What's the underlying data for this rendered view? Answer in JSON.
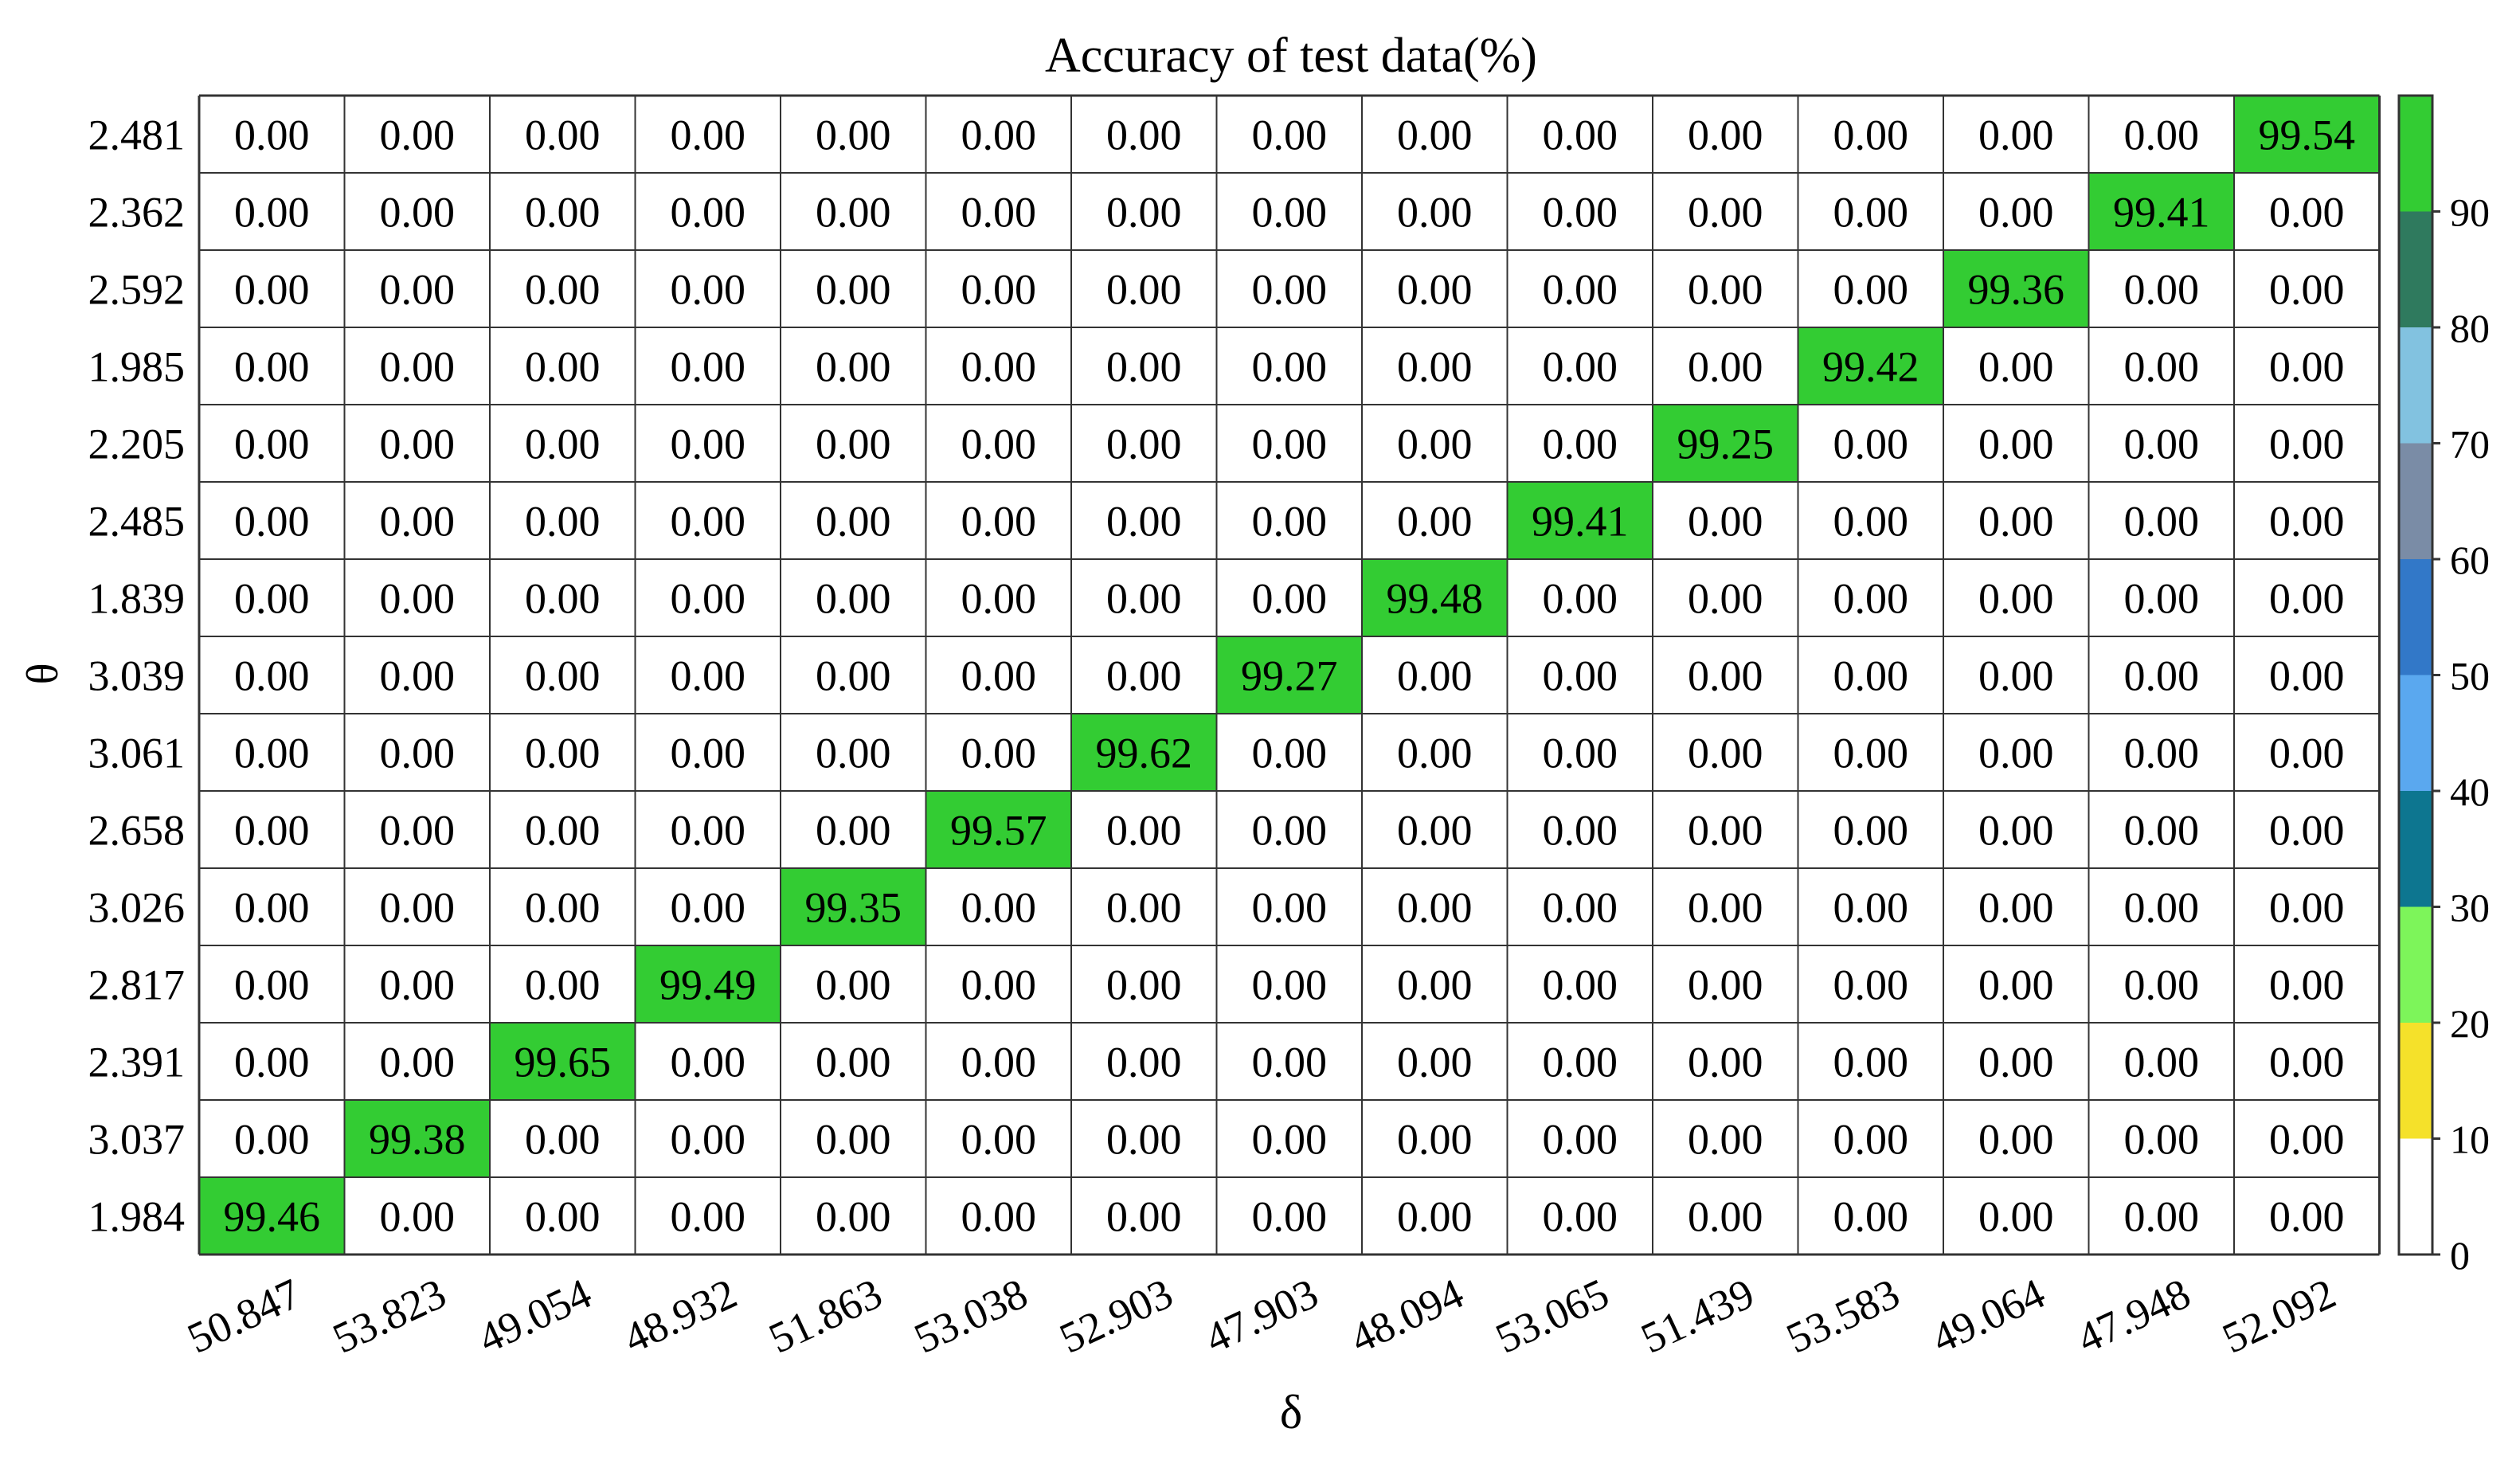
{
  "chart_data": {
    "type": "heatmap",
    "title": "Accuracy of test data(%)",
    "xlabel": "δ",
    "ylabel": "θ",
    "x_categories": [
      "50.847",
      "53.823",
      "49.054",
      "48.932",
      "51.863",
      "53.038",
      "52.903",
      "47.903",
      "48.094",
      "53.065",
      "51.439",
      "53.583",
      "49.064",
      "47.948",
      "52.092"
    ],
    "y_categories": [
      "2.481",
      "2.362",
      "2.592",
      "1.985",
      "2.205",
      "2.485",
      "1.839",
      "3.039",
      "3.061",
      "2.658",
      "3.026",
      "2.817",
      "2.391",
      "3.037",
      "1.984"
    ],
    "values": [
      [
        "0.00",
        "0.00",
        "0.00",
        "0.00",
        "0.00",
        "0.00",
        "0.00",
        "0.00",
        "0.00",
        "0.00",
        "0.00",
        "0.00",
        "0.00",
        "0.00",
        "99.54"
      ],
      [
        "0.00",
        "0.00",
        "0.00",
        "0.00",
        "0.00",
        "0.00",
        "0.00",
        "0.00",
        "0.00",
        "0.00",
        "0.00",
        "0.00",
        "0.00",
        "99.41",
        "0.00"
      ],
      [
        "0.00",
        "0.00",
        "0.00",
        "0.00",
        "0.00",
        "0.00",
        "0.00",
        "0.00",
        "0.00",
        "0.00",
        "0.00",
        "0.00",
        "99.36",
        "0.00",
        "0.00"
      ],
      [
        "0.00",
        "0.00",
        "0.00",
        "0.00",
        "0.00",
        "0.00",
        "0.00",
        "0.00",
        "0.00",
        "0.00",
        "0.00",
        "99.42",
        "0.00",
        "0.00",
        "0.00"
      ],
      [
        "0.00",
        "0.00",
        "0.00",
        "0.00",
        "0.00",
        "0.00",
        "0.00",
        "0.00",
        "0.00",
        "0.00",
        "99.25",
        "0.00",
        "0.00",
        "0.00",
        "0.00"
      ],
      [
        "0.00",
        "0.00",
        "0.00",
        "0.00",
        "0.00",
        "0.00",
        "0.00",
        "0.00",
        "0.00",
        "99.41",
        "0.00",
        "0.00",
        "0.00",
        "0.00",
        "0.00"
      ],
      [
        "0.00",
        "0.00",
        "0.00",
        "0.00",
        "0.00",
        "0.00",
        "0.00",
        "0.00",
        "99.48",
        "0.00",
        "0.00",
        "0.00",
        "0.00",
        "0.00",
        "0.00"
      ],
      [
        "0.00",
        "0.00",
        "0.00",
        "0.00",
        "0.00",
        "0.00",
        "0.00",
        "99.27",
        "0.00",
        "0.00",
        "0.00",
        "0.00",
        "0.00",
        "0.00",
        "0.00"
      ],
      [
        "0.00",
        "0.00",
        "0.00",
        "0.00",
        "0.00",
        "0.00",
        "99.62",
        "0.00",
        "0.00",
        "0.00",
        "0.00",
        "0.00",
        "0.00",
        "0.00",
        "0.00"
      ],
      [
        "0.00",
        "0.00",
        "0.00",
        "0.00",
        "0.00",
        "99.57",
        "0.00",
        "0.00",
        "0.00",
        "0.00",
        "0.00",
        "0.00",
        "0.00",
        "0.00",
        "0.00"
      ],
      [
        "0.00",
        "0.00",
        "0.00",
        "0.00",
        "99.35",
        "0.00",
        "0.00",
        "0.00",
        "0.00",
        "0.00",
        "0.00",
        "0.00",
        "0.00",
        "0.00",
        "0.00"
      ],
      [
        "0.00",
        "0.00",
        "0.00",
        "99.49",
        "0.00",
        "0.00",
        "0.00",
        "0.00",
        "0.00",
        "0.00",
        "0.00",
        "0.00",
        "0.00",
        "0.00",
        "0.00"
      ],
      [
        "0.00",
        "0.00",
        "99.65",
        "0.00",
        "0.00",
        "0.00",
        "0.00",
        "0.00",
        "0.00",
        "0.00",
        "0.00",
        "0.00",
        "0.00",
        "0.00",
        "0.00"
      ],
      [
        "0.00",
        "99.38",
        "0.00",
        "0.00",
        "0.00",
        "0.00",
        "0.00",
        "0.00",
        "0.00",
        "0.00",
        "0.00",
        "0.00",
        "0.00",
        "0.00",
        "0.00"
      ],
      [
        "99.46",
        "0.00",
        "0.00",
        "0.00",
        "0.00",
        "0.00",
        "0.00",
        "0.00",
        "0.00",
        "0.00",
        "0.00",
        "0.00",
        "0.00",
        "0.00",
        "0.00"
      ]
    ],
    "colorbar": {
      "range": [
        0,
        100
      ],
      "ticks": [
        "0",
        "10",
        "20",
        "30",
        "40",
        "50",
        "60",
        "70",
        "80",
        "90"
      ],
      "colors": [
        "#ffffff",
        "#f5e12a",
        "#7df55a",
        "#0d7690",
        "#5aa8ef",
        "#3278c8",
        "#7a8ca6",
        "#82c2e0",
        "#2f7a5e",
        "#33cc33"
      ]
    },
    "grid": true
  }
}
